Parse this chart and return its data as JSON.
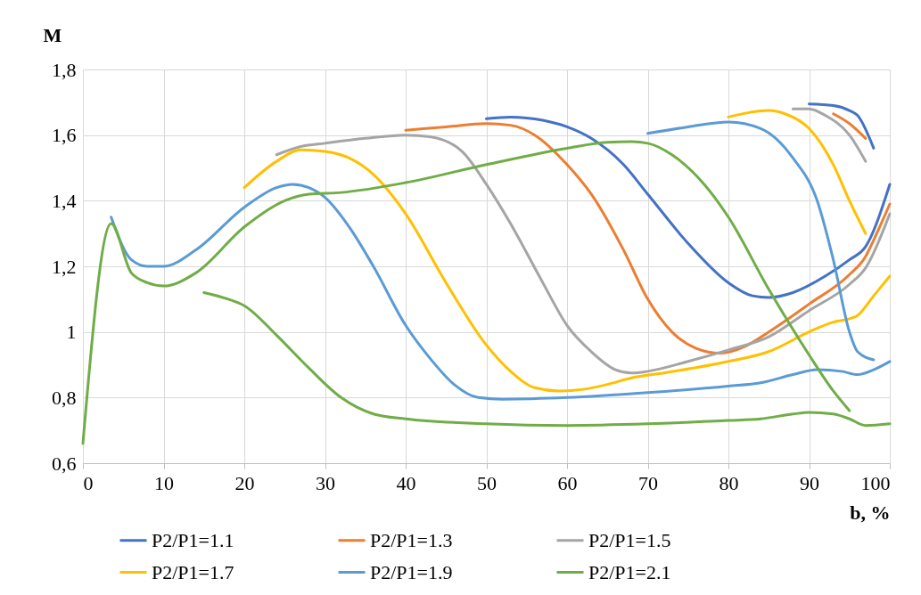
{
  "chart_data": {
    "type": "line",
    "xlabel": "b, %",
    "ylabel": "M",
    "xlim": [
      0,
      100
    ],
    "xticks": [
      0,
      10,
      20,
      30,
      40,
      50,
      60,
      70,
      80,
      90,
      100
    ],
    "ylim": [
      0.6,
      1.8
    ],
    "yticks": [
      {
        "value": 0.6,
        "label": "0,6"
      },
      {
        "value": 0.8,
        "label": "0,8"
      },
      1,
      {
        "value": 1.2,
        "label": "1,2"
      },
      {
        "value": 1.4,
        "label": "1,4"
      },
      {
        "value": 1.6,
        "label": "1,6"
      },
      {
        "value": 1.8,
        "label": "1,8"
      }
    ],
    "grid": true,
    "legend": "bottom",
    "line_style": "solid",
    "marker": "none",
    "series": [
      {
        "name": "P2/P1=1.1",
        "color": "#4472c4",
        "x": [
          50,
          53,
          57,
          60,
          63,
          67,
          70,
          75,
          80,
          83,
          85,
          88,
          92,
          95,
          97,
          100
        ],
        "values": [
          1.65,
          1.655,
          1.645,
          1.625,
          1.59,
          1.51,
          1.42,
          1.27,
          1.15,
          1.11,
          1.105,
          1.12,
          1.17,
          1.22,
          1.26,
          1.45
        ]
      },
      {
        "color": "#4472c4",
        "x": [
          90,
          93,
          95,
          96,
          98
        ],
        "values": [
          1.695,
          1.69,
          1.675,
          1.66,
          1.56
        ]
      },
      {
        "name": "P2/P1=1.3",
        "color": "#ed7d31",
        "x": [
          40,
          45,
          50,
          53,
          56,
          60,
          63,
          67,
          70,
          73,
          76,
          79,
          82,
          85,
          90,
          95,
          97,
          98,
          100
        ],
        "values": [
          1.615,
          1.625,
          1.635,
          1.63,
          1.6,
          1.51,
          1.42,
          1.25,
          1.1,
          1.0,
          0.95,
          0.935,
          0.955,
          1.0,
          1.085,
          1.175,
          1.23,
          1.28,
          1.39
        ]
      },
      {
        "color": "#ed7d31",
        "x": [
          93,
          95,
          97
        ],
        "values": [
          1.665,
          1.635,
          1.59
        ]
      },
      {
        "name": "P2/P1=1.5",
        "color": "#a5a5a5",
        "x": [
          24,
          27,
          30,
          35,
          40,
          43,
          47,
          50,
          53,
          57,
          60,
          63,
          66,
          68,
          70,
          75,
          80,
          85,
          90,
          95,
          97,
          100
        ],
        "values": [
          1.54,
          1.565,
          1.575,
          1.59,
          1.6,
          1.595,
          1.55,
          1.45,
          1.33,
          1.15,
          1.02,
          0.94,
          0.885,
          0.875,
          0.88,
          0.91,
          0.945,
          0.985,
          1.065,
          1.145,
          1.195,
          1.36
        ]
      },
      {
        "color": "#a5a5a5",
        "x": [
          88,
          90,
          92,
          95,
          97
        ],
        "values": [
          1.68,
          1.68,
          1.66,
          1.6,
          1.52
        ]
      },
      {
        "name": "P2/P1=1.7",
        "color": "#ffc000",
        "x": [
          20,
          24,
          27,
          30,
          33,
          36,
          40,
          45,
          50,
          53,
          56,
          59,
          62,
          65,
          68,
          72,
          80,
          85,
          90,
          93,
          95,
          96,
          98,
          100
        ],
        "values": [
          1.44,
          1.52,
          1.555,
          1.55,
          1.53,
          1.48,
          1.36,
          1.15,
          0.96,
          0.88,
          0.83,
          0.82,
          0.825,
          0.84,
          0.86,
          0.875,
          0.91,
          0.94,
          1.0,
          1.03,
          1.04,
          1.05,
          1.11,
          1.17
        ]
      },
      {
        "color": "#ffc000",
        "x": [
          80,
          85,
          87,
          90,
          93,
          95,
          97
        ],
        "values": [
          1.655,
          1.675,
          1.665,
          1.62,
          1.51,
          1.4,
          1.3
        ]
      },
      {
        "name": "P2/P1=1.9",
        "color": "#5b9bd5",
        "x": [
          3.5,
          6,
          8,
          10,
          14,
          20,
          24,
          26,
          28,
          30,
          33,
          36,
          40,
          43,
          46,
          49,
          52,
          60,
          70,
          80,
          84,
          88,
          91,
          94,
          96,
          98,
          100
        ],
        "values": [
          1.35,
          1.22,
          1.2,
          1.2,
          1.25,
          1.38,
          1.44,
          1.45,
          1.44,
          1.41,
          1.32,
          1.2,
          1.02,
          0.92,
          0.84,
          0.8,
          0.795,
          0.8,
          0.815,
          0.835,
          0.845,
          0.87,
          0.885,
          0.88,
          0.87,
          0.885,
          0.91
        ]
      },
      {
        "color": "#5b9bd5",
        "x": [
          70,
          75,
          80,
          84,
          88,
          91,
          93,
          95,
          96,
          98
        ],
        "values": [
          1.605,
          1.625,
          1.64,
          1.62,
          1.53,
          1.4,
          1.22,
          1.0,
          0.94,
          0.915
        ]
      },
      {
        "name": "P2/P1=2.1",
        "color": "#70ad47",
        "x": [
          15,
          18,
          20,
          24,
          28,
          32,
          36,
          40,
          50,
          60,
          70,
          80,
          84,
          88,
          90,
          93,
          95,
          97,
          100
        ],
        "values": [
          1.12,
          1.1,
          1.08,
          0.99,
          0.89,
          0.8,
          0.75,
          0.735,
          0.72,
          0.715,
          0.72,
          0.73,
          0.735,
          0.75,
          0.755,
          0.75,
          0.735,
          0.715,
          0.72
        ]
      },
      {
        "color": "#70ad47",
        "x": [
          0,
          3.5,
          6,
          8,
          10,
          14,
          20,
          25,
          28,
          32,
          40,
          50,
          60,
          65,
          68,
          70,
          73,
          77,
          80,
          85,
          90,
          93,
          95
        ],
        "values": [
          0.66,
          1.33,
          1.18,
          1.15,
          1.14,
          1.18,
          1.32,
          1.4,
          1.42,
          1.425,
          1.455,
          1.51,
          1.56,
          1.578,
          1.58,
          1.575,
          1.54,
          1.45,
          1.35,
          1.13,
          0.93,
          0.82,
          0.76
        ]
      }
    ]
  }
}
